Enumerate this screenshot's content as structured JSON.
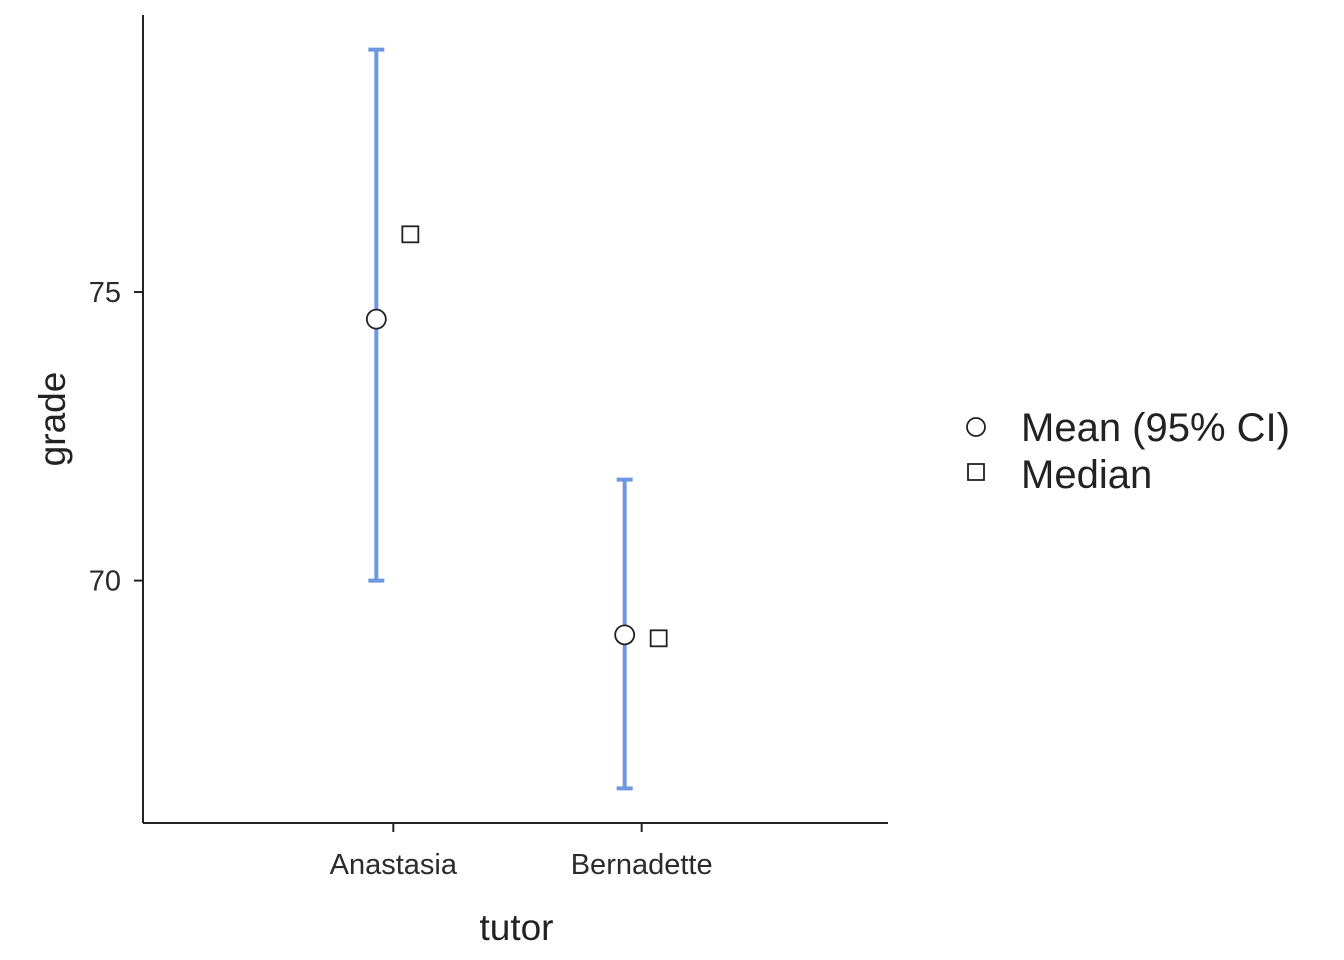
{
  "chart_data": {
    "type": "errorbar",
    "xlabel": "tutor",
    "ylabel": "grade",
    "categories": [
      "Anastasia",
      "Bernadette"
    ],
    "ylim": [
      65.8,
      79.8
    ],
    "yticks": [
      70,
      75
    ],
    "mean": [
      74.53,
      69.06
    ],
    "ci_lower": [
      70.0,
      66.4
    ],
    "ci_upper": [
      79.2,
      71.75
    ],
    "median": [
      76.0,
      69.0
    ],
    "legend": {
      "placement": "right",
      "items": [
        "Mean (95% CI)",
        "Median"
      ]
    },
    "colors": {
      "errorbar": "#6f97e0",
      "marker_stroke": "#222222",
      "axis": "#222222"
    },
    "grid": false
  }
}
